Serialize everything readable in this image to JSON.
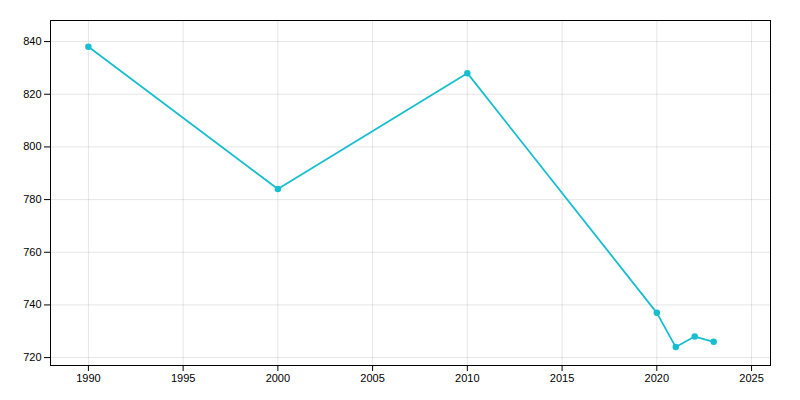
{
  "chart_data": {
    "type": "line",
    "x": [
      1990,
      2000,
      2010,
      2020,
      2021,
      2022,
      2023
    ],
    "values": [
      838,
      784,
      828,
      737,
      724,
      728,
      726
    ],
    "color": "#17becf",
    "marker": "circle",
    "xlim": [
      1988,
      2026
    ],
    "xticks": [
      1990,
      1995,
      2000,
      2005,
      2010,
      2015,
      2020,
      2025
    ],
    "ylim": [
      717,
      848
    ],
    "yticks": [
      720,
      740,
      760,
      780,
      800,
      820,
      840
    ],
    "grid": true
  }
}
